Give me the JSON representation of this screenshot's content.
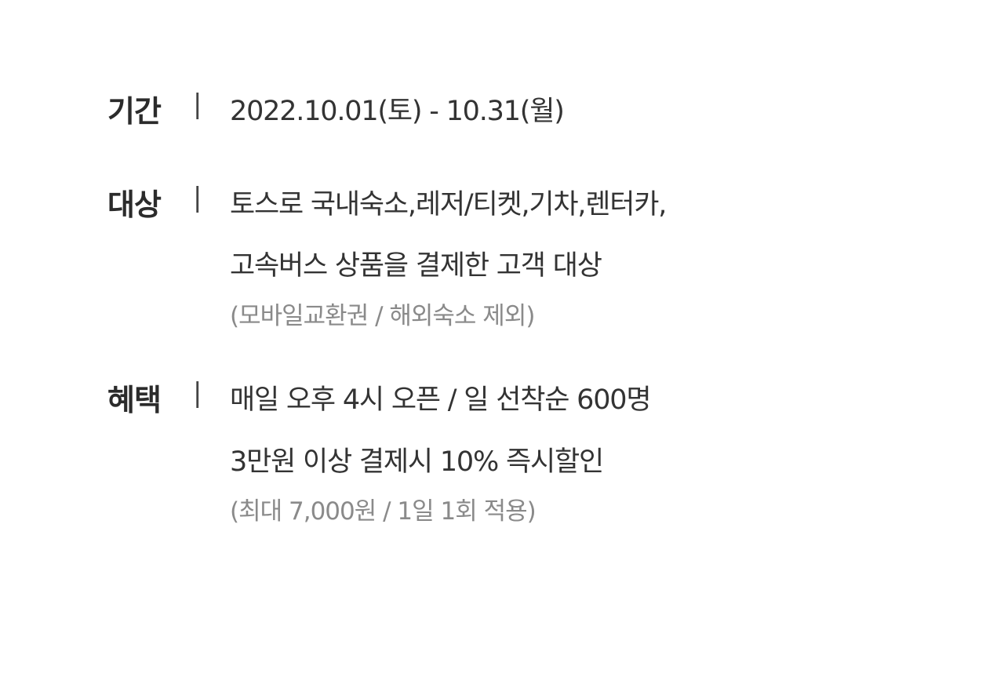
{
  "separator": "|",
  "period": {
    "label": "기간",
    "value": "2022.10.01(토) - 10.31(월)"
  },
  "target": {
    "label": "대상",
    "line1": "토스로 국내숙소,레저/티켓,기차,렌터카,",
    "line2": "고속버스 상품을 결제한 고객 대상",
    "note": "(모바일교환권 / 해외숙소 제외)"
  },
  "benefit": {
    "label": "혜택",
    "line1": "매일 오후 4시 오픈 / 일 선착순 600명",
    "line2": "3만원 이상 결제시 10% 즉시할인",
    "note": "(최대 7,000원 / 1일 1회 적용)"
  }
}
